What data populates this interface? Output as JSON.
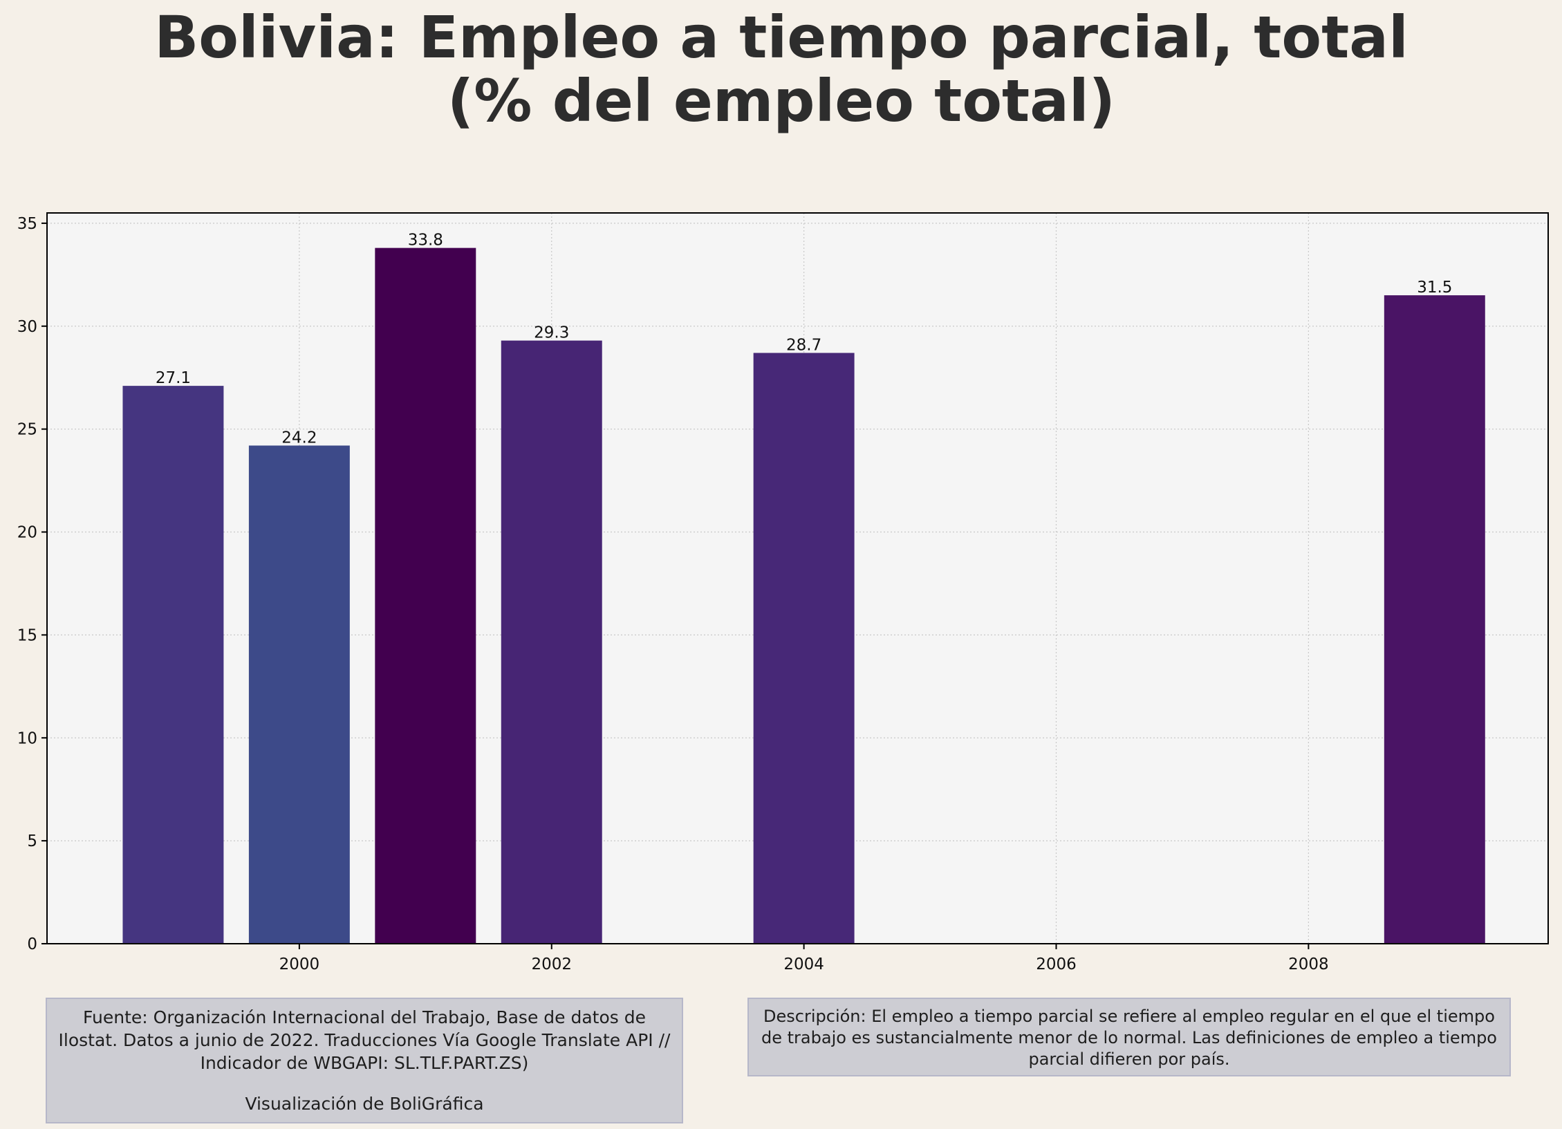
{
  "title": "Bolivia:  Empleo a tiempo parcial, total (% del empleo total)",
  "source_text": "Fuente: Organización Internacional del Trabajo, Base de datos de Ilostat. Datos a junio de 2022.   Traducciones Vía Google Translate API // Indicador de WBGAPI: SL.TLF.PART.ZS)",
  "credit_text": "Visualización de BoliGráfica",
  "description_text": "Descripción: El empleo a tiempo parcial se refiere al empleo regular en el que el tiempo de trabajo es sustancialmente menor de lo normal. Las definiciones de empleo a tiempo parcial difieren por país.",
  "colors": {
    "background": "#f5f0e8",
    "plot_background": "#f5f5f5",
    "grid": "#c8c8c8",
    "axis": "#000000"
  },
  "chart_data": {
    "type": "bar",
    "title": "Bolivia:  Empleo a tiempo parcial, total (% del empleo total)",
    "xlabel": "",
    "ylabel": "",
    "x": [
      1999,
      2000,
      2001,
      2002,
      2004,
      2009
    ],
    "values": [
      27.1,
      24.2,
      33.8,
      29.3,
      28.7,
      31.5
    ],
    "value_labels": [
      "27.1",
      "24.2",
      "33.8",
      "29.3",
      "28.7",
      "31.5"
    ],
    "bar_colors": [
      "#453580",
      "#3d4a89",
      "#42004f",
      "#472574",
      "#472877",
      "#4a1465"
    ],
    "xticks": [
      2000,
      2002,
      2004,
      2006,
      2008
    ],
    "xtick_labels": [
      "2000",
      "2002",
      "2004",
      "2006",
      "2008"
    ],
    "yticks": [
      0,
      5,
      10,
      15,
      20,
      25,
      30,
      35
    ],
    "ytick_labels": [
      "0",
      "5",
      "10",
      "15",
      "20",
      "25",
      "30",
      "35"
    ],
    "xlim": [
      1998.0,
      2009.9
    ],
    "ylim": [
      0,
      35.5
    ],
    "bar_width": 0.8,
    "grid": true,
    "legend": "none"
  }
}
